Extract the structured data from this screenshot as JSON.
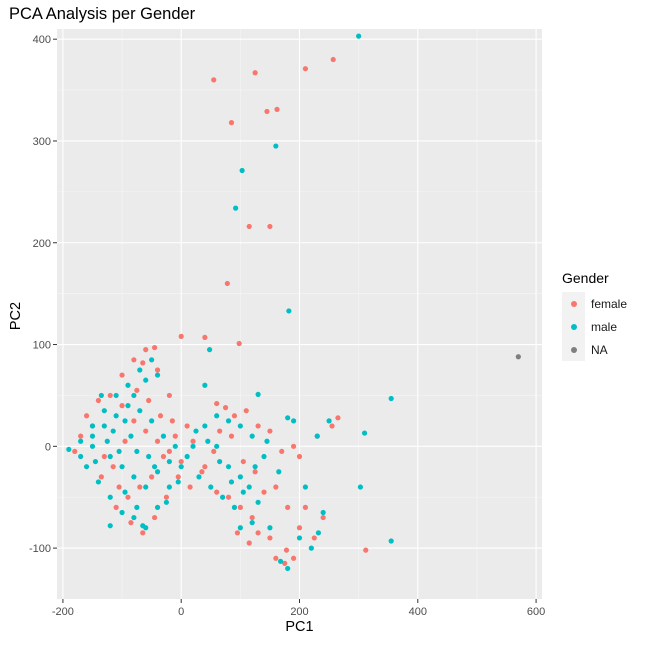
{
  "chart_data": {
    "type": "scatter",
    "title": "PCA Analysis per Gender",
    "xlabel": "PC1",
    "ylabel": "PC2",
    "xlim": [
      -210,
      610
    ],
    "ylim": [
      -150,
      410
    ],
    "x_ticks": [
      -200,
      0,
      200,
      400,
      600
    ],
    "y_ticks": [
      -100,
      0,
      100,
      200,
      300,
      400
    ],
    "grid": true,
    "legend_title": "Gender",
    "legend_position": "right",
    "series": [
      {
        "name": "female",
        "color": "#F8766D",
        "points": [
          [
            55,
            360
          ],
          [
            125,
            367
          ],
          [
            210,
            371
          ],
          [
            257,
            380
          ],
          [
            85,
            318
          ],
          [
            145,
            329
          ],
          [
            162,
            331
          ],
          [
            115,
            216
          ],
          [
            150,
            216
          ],
          [
            78,
            160
          ],
          [
            0,
            108
          ],
          [
            40,
            107
          ],
          [
            98,
            101
          ],
          [
            -45,
            97
          ],
          [
            -60,
            95
          ],
          [
            -80,
            85
          ],
          [
            -100,
            70
          ],
          [
            -65,
            82
          ],
          [
            -40,
            75
          ],
          [
            -20,
            50
          ],
          [
            10,
            20
          ],
          [
            60,
            42
          ],
          [
            75,
            38
          ],
          [
            90,
            30
          ],
          [
            110,
            35
          ],
          [
            130,
            20
          ],
          [
            150,
            15
          ],
          [
            170,
            -5
          ],
          [
            200,
            -10
          ],
          [
            265,
            28
          ],
          [
            255,
            20
          ],
          [
            230,
            10
          ],
          [
            190,
            0
          ],
          [
            160,
            -40
          ],
          [
            180,
            -60
          ],
          [
            200,
            -80
          ],
          [
            178,
            -102
          ],
          [
            190,
            -110
          ],
          [
            160,
            -110
          ],
          [
            150,
            -90
          ],
          [
            130,
            -85
          ],
          [
            120,
            -70
          ],
          [
            100,
            -60
          ],
          [
            80,
            -50
          ],
          [
            60,
            -45
          ],
          [
            40,
            -20
          ],
          [
            20,
            5
          ],
          [
            -10,
            10
          ],
          [
            -30,
            -10
          ],
          [
            -50,
            -30
          ],
          [
            -70,
            -40
          ],
          [
            -90,
            -50
          ],
          [
            -110,
            -60
          ],
          [
            -130,
            -10
          ],
          [
            -150,
            20
          ],
          [
            -160,
            30
          ],
          [
            -140,
            45
          ],
          [
            -120,
            50
          ],
          [
            -100,
            40
          ],
          [
            -80,
            25
          ],
          [
            -60,
            15
          ],
          [
            -40,
            5
          ],
          [
            -20,
            -5
          ],
          [
            0,
            -15
          ],
          [
            -25,
            -50
          ],
          [
            -45,
            -70
          ],
          [
            -65,
            -85
          ],
          [
            -85,
            -75
          ],
          [
            -105,
            -40
          ],
          [
            312,
            -102
          ],
          [
            240,
            -70
          ],
          [
            225,
            -90
          ],
          [
            -170,
            10
          ],
          [
            -180,
            -5
          ],
          [
            65,
            15
          ],
          [
            85,
            10
          ],
          [
            105,
            -15
          ],
          [
            125,
            -25
          ],
          [
            140,
            -45
          ],
          [
            55,
            -5
          ],
          [
            35,
            -25
          ],
          [
            15,
            -40
          ],
          [
            -5,
            -30
          ],
          [
            -15,
            25
          ],
          [
            -35,
            30
          ],
          [
            -55,
            45
          ],
          [
            -75,
            55
          ],
          [
            -95,
            5
          ],
          [
            -115,
            -20
          ],
          [
            -135,
            -30
          ],
          [
            95,
            -85
          ],
          [
            115,
            -95
          ],
          [
            175,
            -115
          ],
          [
            210,
            -60
          ]
        ]
      },
      {
        "name": "male",
        "color": "#00BFC4",
        "points": [
          [
            300,
            403
          ],
          [
            160,
            295
          ],
          [
            103,
            271
          ],
          [
            92,
            234
          ],
          [
            182,
            133
          ],
          [
            355,
            47
          ],
          [
            48,
            95
          ],
          [
            -50,
            85
          ],
          [
            -70,
            75
          ],
          [
            -90,
            60
          ],
          [
            -110,
            50
          ],
          [
            -130,
            35
          ],
          [
            -150,
            20
          ],
          [
            -170,
            5
          ],
          [
            -190,
            -3
          ],
          [
            -160,
            -20
          ],
          [
            -140,
            -35
          ],
          [
            -120,
            -50
          ],
          [
            -100,
            -65
          ],
          [
            -80,
            -70
          ],
          [
            -60,
            -80
          ],
          [
            -40,
            -60
          ],
          [
            -20,
            -40
          ],
          [
            0,
            -20
          ],
          [
            20,
            0
          ],
          [
            40,
            20
          ],
          [
            60,
            30
          ],
          [
            80,
            25
          ],
          [
            100,
            20
          ],
          [
            120,
            10
          ],
          [
            140,
            -10
          ],
          [
            130,
            51
          ],
          [
            180,
            28
          ],
          [
            190,
            25
          ],
          [
            230,
            10
          ],
          [
            250,
            25
          ],
          [
            310,
            13
          ],
          [
            303,
            -40
          ],
          [
            355,
            -93
          ],
          [
            232,
            -85
          ],
          [
            240,
            -65
          ],
          [
            210,
            -40
          ],
          [
            220,
            -100
          ],
          [
            200,
            -90
          ],
          [
            180,
            -120
          ],
          [
            168,
            -113
          ],
          [
            150,
            -80
          ],
          [
            120,
            -75
          ],
          [
            100,
            -80
          ],
          [
            90,
            -60
          ],
          [
            70,
            -50
          ],
          [
            50,
            -40
          ],
          [
            30,
            -30
          ],
          [
            10,
            -10
          ],
          [
            -10,
            0
          ],
          [
            -30,
            10
          ],
          [
            -50,
            25
          ],
          [
            -70,
            35
          ],
          [
            -90,
            40
          ],
          [
            -110,
            30
          ],
          [
            -130,
            20
          ],
          [
            -150,
            0
          ],
          [
            -120,
            -10
          ],
          [
            -100,
            -20
          ],
          [
            -80,
            -30
          ],
          [
            -60,
            -40
          ],
          [
            -40,
            -25
          ],
          [
            -20,
            -15
          ],
          [
            -60,
            65
          ],
          [
            -40,
            70
          ],
          [
            -80,
            50
          ],
          [
            -120,
            -78
          ],
          [
            -65,
            -78
          ],
          [
            40,
            60
          ],
          [
            60,
            0
          ],
          [
            80,
            -20
          ],
          [
            100,
            -30
          ],
          [
            115,
            -40
          ],
          [
            130,
            -55
          ],
          [
            -5,
            -35
          ],
          [
            -25,
            -55
          ],
          [
            -45,
            -20
          ],
          [
            -85,
            10
          ],
          [
            -105,
            -5
          ],
          [
            -125,
            5
          ],
          [
            -145,
            -15
          ],
          [
            -95,
            25
          ],
          [
            -75,
            -5
          ],
          [
            -55,
            -10
          ],
          [
            25,
            15
          ],
          [
            45,
            5
          ],
          [
            65,
            -15
          ],
          [
            85,
            -35
          ],
          [
            105,
            -45
          ],
          [
            125,
            -20
          ],
          [
            145,
            5
          ],
          [
            165,
            -25
          ],
          [
            -150,
            10
          ],
          [
            -170,
            -10
          ],
          [
            -135,
            50
          ],
          [
            -115,
            15
          ],
          [
            -95,
            -45
          ],
          [
            -75,
            -60
          ]
        ]
      },
      {
        "name": "NA",
        "color": "#7F7F7F",
        "points": [
          [
            570,
            88
          ]
        ]
      }
    ]
  }
}
